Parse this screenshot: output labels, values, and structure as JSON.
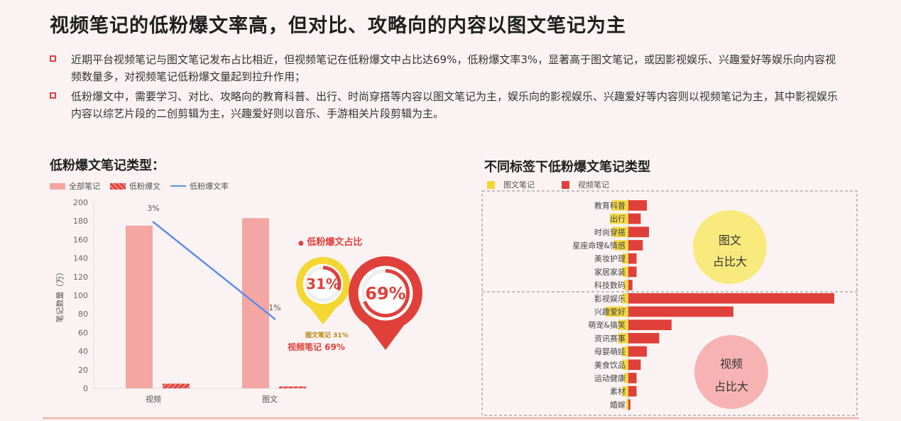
{
  "title": "视频笔记的低粉爆文率高，但对比、攻略向的内容以图文笔记为主",
  "bullets": [
    "近期平台视频笔记与图文笔记发布占比相近，但视频笔记在低粉爆文中占比达69%，低粉爆文率3%，显著高于图文笔记，或因影视娱乐、兴趣爱好等娱乐向内容视频数量多，对视频笔记低粉爆文量起到拉升作用；",
    "低粉爆文中，需要学习、对比、攻略向的教育科普、出行、时尚穿搭等内容以图文笔记为主，娱乐向的影视娱乐、兴趣爱好等内容则以视频笔记为主，其中影视娱乐内容以综艺片段的二创剪辑为主，兴趣爱好则以音乐、手游相关片段剪辑为主。"
  ],
  "colors": {
    "accent": "#e0403a",
    "pink": "#f3a6a2",
    "yellow": "#f5d733",
    "blue": "#5b8fe8"
  },
  "left_section": {
    "title": "低粉爆文笔记类型：",
    "legend": [
      "全部笔记",
      "低粉爆文",
      "低粉爆文率"
    ]
  },
  "pie_callout": {
    "title": "低粉爆文占比",
    "image_label": "31%",
    "video_label": "69%",
    "caption_image": "图文笔记 31%",
    "caption_video": "视频笔记 69%"
  },
  "right_section": {
    "title": "不同标签下低粉爆文笔记类型",
    "legend": [
      "图文笔记",
      "视频笔记"
    ],
    "circle_top": [
      "图文",
      "占比大"
    ],
    "circle_bottom": [
      "视频",
      "占比大"
    ]
  },
  "chart_data": [
    {
      "type": "bar",
      "categories": [
        "视频",
        "图文"
      ],
      "ylabel": "笔记数量（万）",
      "ylim": [
        0,
        200
      ],
      "yticks": [
        0,
        20,
        40,
        60,
        80,
        100,
        120,
        140,
        160,
        180,
        200
      ],
      "series": [
        {
          "name": "全部笔记",
          "values": [
            175,
            183
          ]
        },
        {
          "name": "低粉爆文",
          "values": [
            5,
            2
          ]
        }
      ],
      "line_series": {
        "name": "低粉爆文率",
        "labels": [
          "3%",
          "1%"
        ]
      }
    },
    {
      "type": "pie",
      "title": "低粉爆文占比",
      "slices": [
        {
          "name": "图文笔记",
          "value": 31
        },
        {
          "name": "视频笔记",
          "value": 69
        }
      ]
    },
    {
      "type": "bar",
      "orientation": "horizontal",
      "categories": [
        "教育科普",
        "出行",
        "时尚穿搭",
        "星座命理&情感",
        "美妆护理",
        "家居家装",
        "科技数码",
        "影视娱乐",
        "兴趣爱好",
        "萌宠&搞笑",
        "资讯赛事",
        "母婴萌娃",
        "美食饮品",
        "运动健康",
        "素材",
        "婚嫁"
      ],
      "series": [
        {
          "name": "图文笔记",
          "values": [
            8,
            9,
            8,
            7,
            3,
            3,
            2,
            3,
            11,
            5,
            5,
            3,
            3,
            2,
            3,
            1
          ]
        },
        {
          "name": "视频笔记",
          "values": [
            9,
            6,
            10,
            7,
            4,
            4,
            2,
            100,
            51,
            21,
            15,
            9,
            6,
            4,
            4,
            1
          ]
        }
      ]
    }
  ]
}
